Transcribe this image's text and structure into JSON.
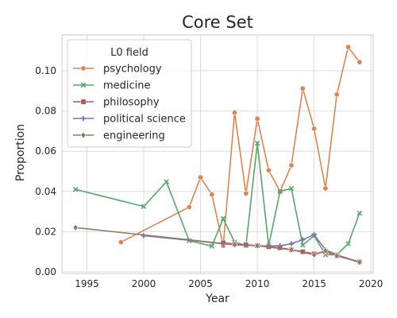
{
  "chart_data": {
    "type": "line",
    "title": "Core Set",
    "xlabel": "Year",
    "ylabel": "Proportion",
    "xlim": [
      1992.8,
      2020.2
    ],
    "ylim": [
      -0.0008,
      0.1178
    ],
    "x_ticks": [
      1995,
      2000,
      2005,
      2010,
      2015,
      2020
    ],
    "y_ticks": [
      0.0,
      0.02,
      0.04,
      0.06,
      0.08,
      0.1
    ],
    "y_tick_labels": [
      "0.00",
      "0.02",
      "0.04",
      "0.06",
      "0.08",
      "0.10"
    ],
    "grid": true,
    "legend": {
      "title": "L0 field",
      "placement": "top-left"
    },
    "series": [
      {
        "name": "psychology",
        "color": "#dd8452",
        "marker": "circle",
        "x": [
          1998,
          2004,
          2005,
          2006,
          2007,
          2008,
          2009,
          2010,
          2011,
          2012,
          2013,
          2014,
          2015,
          2016,
          2017,
          2018,
          2019
        ],
        "y": [
          0.0148,
          0.0322,
          0.047,
          0.0385,
          0.013,
          0.0792,
          0.039,
          0.0762,
          0.0505,
          0.04,
          0.053,
          0.0912,
          0.0712,
          0.0415,
          0.0882,
          0.1118,
          0.1043
        ]
      },
      {
        "name": "medicine",
        "color": "#55a868",
        "marker": "x",
        "x": [
          1994,
          2000,
          2002,
          2004,
          2006,
          2007,
          2008,
          2009,
          2010,
          2011,
          2012,
          2013,
          2014,
          2015,
          2016,
          2017,
          2018,
          2019
        ],
        "y": [
          0.041,
          0.0325,
          0.0448,
          0.0155,
          0.0128,
          0.0265,
          0.0148,
          0.013,
          0.064,
          0.013,
          0.04,
          0.0415,
          0.0133,
          0.018,
          0.0085,
          0.0085,
          0.014,
          0.0292
        ]
      },
      {
        "name": "philosophy",
        "color": "#c44e52",
        "marker": "square",
        "x": [
          2007,
          2008,
          2009,
          2010,
          2011,
          2012,
          2013,
          2014,
          2015,
          2016,
          2017,
          2019
        ],
        "y": [
          0.0145,
          0.0138,
          0.0135,
          0.013,
          0.0125,
          0.012,
          0.011,
          0.01,
          0.009,
          0.01,
          0.008,
          0.005
        ]
      },
      {
        "name": "political science",
        "color": "#8172b3",
        "marker": "plus",
        "x": [
          2000,
          2007,
          2008,
          2009,
          2010,
          2011,
          2012,
          2013,
          2014,
          2015,
          2016,
          2017,
          2019
        ],
        "y": [
          0.018,
          0.014,
          0.0135,
          0.0133,
          0.013,
          0.0128,
          0.013,
          0.014,
          0.016,
          0.0185,
          0.011,
          0.0085,
          0.0048
        ]
      },
      {
        "name": "engineering",
        "color": "#937860",
        "marker": "diamond",
        "x": [
          1994,
          2008,
          2010,
          2013,
          2015,
          2016,
          2017,
          2019
        ],
        "y": [
          0.022,
          0.0135,
          0.013,
          0.011,
          0.0085,
          0.0105,
          0.008,
          0.0048
        ]
      }
    ]
  }
}
